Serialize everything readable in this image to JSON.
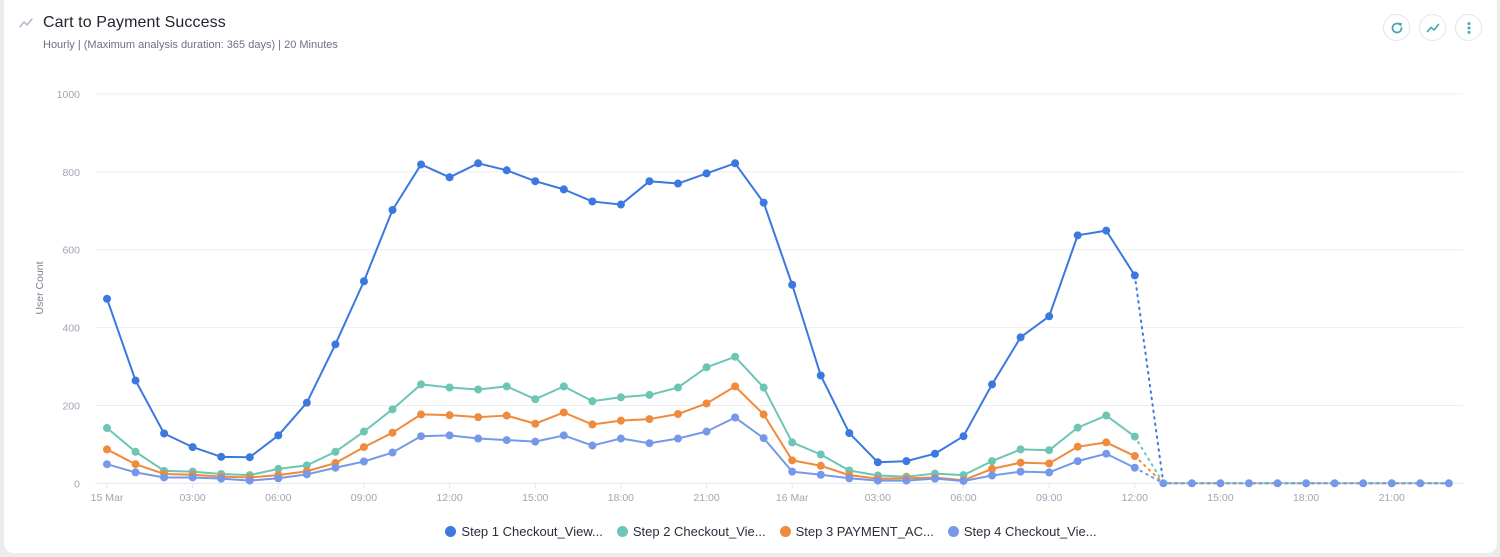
{
  "header": {
    "title": "Cart to Payment Success",
    "subtitle": "Hourly | (Maximum analysis duration: 365 days) | 20 Minutes",
    "icon": "line-chart-icon",
    "actions": [
      {
        "name": "refresh-button",
        "icon": "refresh-icon"
      },
      {
        "name": "chart-type-button",
        "icon": "line-chart-icon"
      },
      {
        "name": "more-options-button",
        "icon": "vertical-ellipsis-icon"
      }
    ]
  },
  "colors": {
    "accent": "#4aa6b5",
    "step1": "#3b78e0",
    "step2": "#6cc5b5",
    "step3": "#f08a3c",
    "step4": "#7599e8",
    "grid": "#eceef5"
  },
  "chart_data": {
    "type": "line",
    "title": "Cart to Payment Success",
    "subtitle": "Hourly | (Maximum analysis duration: 365 days) | 20 Minutes",
    "xlabel": "",
    "ylabel": "User Count",
    "ylim": [
      0,
      1000
    ],
    "yticks": [
      0,
      200,
      400,
      600,
      800,
      1000
    ],
    "grid": true,
    "legend_position": "bottom",
    "x_tick_labels": [
      "15 Mar",
      "03:00",
      "06:00",
      "09:00",
      "12:00",
      "15:00",
      "18:00",
      "21:00",
      "16 Mar",
      "03:00",
      "06:00",
      "09:00",
      "12:00",
      "15:00",
      "18:00",
      "21:00"
    ],
    "x_tick_hours": [
      0,
      3,
      6,
      9,
      12,
      15,
      18,
      21,
      24,
      27,
      30,
      33,
      36,
      39,
      42,
      45
    ],
    "x": [
      "15 Mar 00:00",
      "01:00",
      "02:00",
      "03:00",
      "04:00",
      "05:00",
      "06:00",
      "07:00",
      "08:00",
      "09:00",
      "10:00",
      "11:00",
      "12:00",
      "13:00",
      "14:00",
      "15:00",
      "16:00",
      "17:00",
      "18:00",
      "19:00",
      "20:00",
      "21:00",
      "22:00",
      "23:00",
      "16 Mar 00:00",
      "01:00",
      "02:00",
      "03:00",
      "04:00",
      "05:00",
      "06:00",
      "07:00",
      "08:00",
      "09:00",
      "10:00",
      "11:00",
      "12:00",
      "13:00",
      "14:00",
      "15:00",
      "16:00",
      "17:00",
      "18:00",
      "19:00",
      "20:00",
      "21:00",
      "22:00",
      "23:00"
    ],
    "incomplete_from_index": 36,
    "series": [
      {
        "name": "Step 1 Checkout_View...",
        "color": "#3b78e0",
        "values": [
          474,
          264,
          128,
          93,
          68,
          67,
          123,
          207,
          357,
          519,
          702,
          819,
          786,
          822,
          804,
          776,
          755,
          724,
          716,
          776,
          770,
          796,
          822,
          721,
          510,
          277,
          129,
          54,
          57,
          76,
          121,
          254,
          375,
          429,
          637,
          649,
          534,
          0,
          0,
          0,
          0,
          0,
          0,
          0,
          0,
          0,
          0,
          0
        ]
      },
      {
        "name": "Step 2 Checkout_Vie...",
        "color": "#6cc5b5",
        "values": [
          142,
          81,
          32,
          30,
          24,
          21,
          37,
          46,
          81,
          133,
          190,
          254,
          246,
          241,
          249,
          216,
          249,
          211,
          221,
          227,
          246,
          298,
          325,
          246,
          105,
          74,
          33,
          20,
          17,
          25,
          21,
          57,
          87,
          85,
          143,
          174,
          120,
          0,
          0,
          0,
          0,
          0,
          0,
          0,
          0,
          0,
          0,
          0
        ]
      },
      {
        "name": "Step 3 PAYMENT_AC...",
        "color": "#f08a3c",
        "values": [
          87,
          49,
          24,
          22,
          17,
          15,
          21,
          31,
          52,
          93,
          130,
          177,
          175,
          170,
          174,
          153,
          182,
          151,
          161,
          165,
          178,
          205,
          249,
          177,
          59,
          45,
          21,
          12,
          13,
          15,
          8,
          37,
          53,
          51,
          94,
          105,
          70,
          0,
          0,
          0,
          0,
          0,
          0,
          0,
          0,
          0,
          0,
          0
        ]
      },
      {
        "name": "Step 4 Checkout_Vie...",
        "color": "#7599e8",
        "values": [
          49,
          28,
          15,
          15,
          12,
          7,
          13,
          23,
          40,
          56,
          79,
          121,
          123,
          115,
          111,
          107,
          123,
          97,
          115,
          103,
          115,
          133,
          169,
          116,
          30,
          22,
          13,
          7,
          7,
          12,
          6,
          20,
          30,
          28,
          57,
          76,
          40,
          0,
          0,
          0,
          0,
          0,
          0,
          0,
          0,
          0,
          0,
          0
        ]
      }
    ]
  },
  "legend": {
    "items": [
      {
        "label": "Step 1 Checkout_View...",
        "color": "#3b78e0"
      },
      {
        "label": "Step 2 Checkout_Vie...",
        "color": "#6cc5b5"
      },
      {
        "label": "Step 3 PAYMENT_AC...",
        "color": "#f08a3c"
      },
      {
        "label": "Step 4 Checkout_Vie...",
        "color": "#7599e8"
      }
    ]
  }
}
